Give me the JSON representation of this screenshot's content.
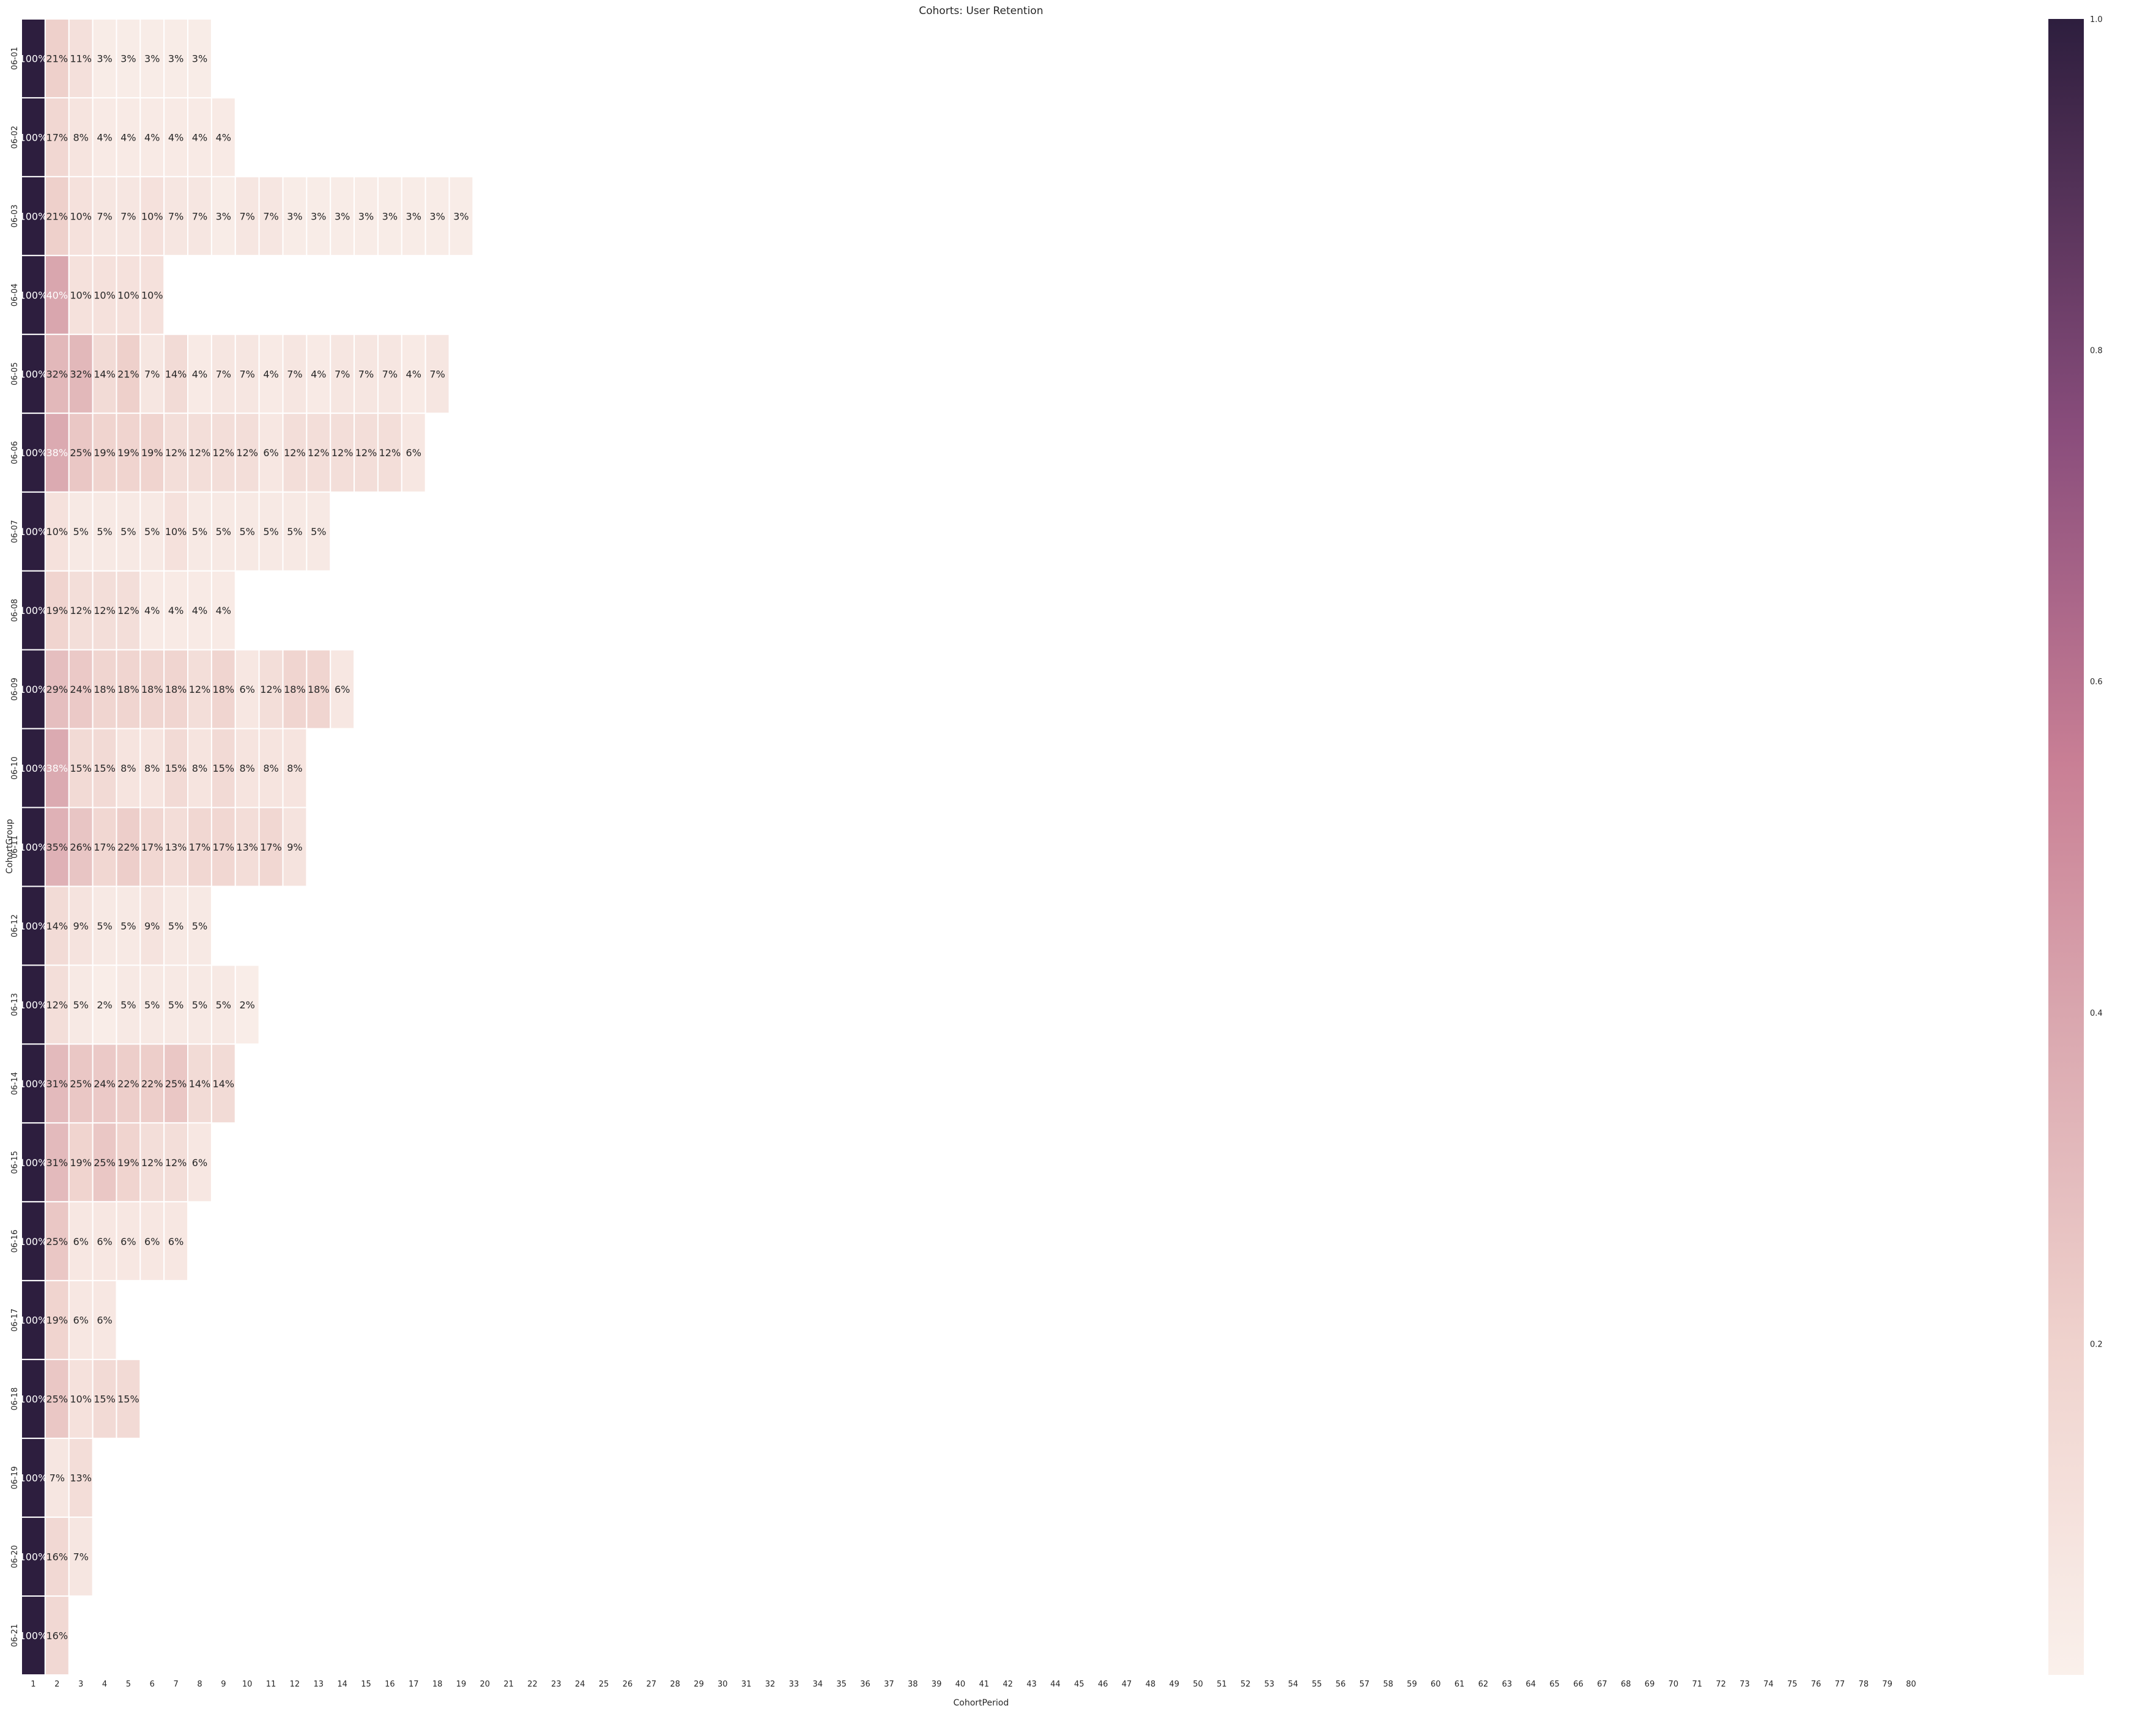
{
  "chart_data": {
    "type": "heatmap",
    "title": "Cohorts: User Retention",
    "xlabel": "CohortPeriod",
    "ylabel": "CohortGroup",
    "x_categories": [
      "1",
      "2",
      "3",
      "4",
      "5",
      "6",
      "7",
      "8",
      "9",
      "10",
      "11",
      "12",
      "13",
      "14",
      "15",
      "16",
      "17",
      "18",
      "19",
      "20",
      "21",
      "22",
      "23",
      "24",
      "25",
      "26",
      "27",
      "28",
      "29",
      "30",
      "31",
      "32",
      "33",
      "34",
      "35",
      "36",
      "37",
      "38",
      "39",
      "40",
      "41",
      "42",
      "43",
      "44",
      "45",
      "46",
      "47",
      "48",
      "49",
      "50",
      "51",
      "52",
      "53",
      "54",
      "55",
      "56",
      "57",
      "58",
      "59",
      "60",
      "61",
      "62",
      "63",
      "64",
      "65",
      "66",
      "67",
      "68",
      "69",
      "70",
      "71",
      "72",
      "73",
      "74",
      "75",
      "76",
      "77",
      "78",
      "79",
      "80"
    ],
    "y_categories": [
      "06-01",
      "06-02",
      "06-03",
      "06-04",
      "06-05",
      "06-06",
      "06-07",
      "06-08",
      "06-09",
      "06-10",
      "06-11",
      "06-12",
      "06-13",
      "06-14",
      "06-15",
      "06-16",
      "06-17",
      "06-18",
      "06-19",
      "06-20",
      "06-21"
    ],
    "values": [
      [
        1.0,
        0.21,
        0.11,
        0.03,
        0.03,
        0.03,
        0.03,
        0.03
      ],
      [
        1.0,
        0.17,
        0.08,
        0.04,
        0.04,
        0.04,
        0.04,
        0.04,
        0.04
      ],
      [
        1.0,
        0.21,
        0.1,
        0.07,
        0.07,
        0.1,
        0.07,
        0.07,
        0.03,
        0.07,
        0.07,
        0.03,
        0.03,
        0.03,
        0.03,
        0.03,
        0.03,
        0.03,
        0.03
      ],
      [
        1.0,
        0.4,
        0.1,
        0.1,
        0.1,
        0.1
      ],
      [
        1.0,
        0.32,
        0.32,
        0.14,
        0.21,
        0.07,
        0.14,
        0.04,
        0.07,
        0.07,
        0.04,
        0.07,
        0.04,
        0.07,
        0.07,
        0.07,
        0.04,
        0.07
      ],
      [
        1.0,
        0.38,
        0.25,
        0.19,
        0.19,
        0.19,
        0.12,
        0.12,
        0.12,
        0.12,
        0.06,
        0.12,
        0.12,
        0.12,
        0.12,
        0.12,
        0.06
      ],
      [
        1.0,
        0.1,
        0.05,
        0.05,
        0.05,
        0.05,
        0.1,
        0.05,
        0.05,
        0.05,
        0.05,
        0.05,
        0.05
      ],
      [
        1.0,
        0.19,
        0.12,
        0.12,
        0.12,
        0.04,
        0.04,
        0.04,
        0.04
      ],
      [
        1.0,
        0.29,
        0.24,
        0.18,
        0.18,
        0.18,
        0.18,
        0.12,
        0.18,
        0.06,
        0.12,
        0.18,
        0.18,
        0.06
      ],
      [
        1.0,
        0.38,
        0.15,
        0.15,
        0.08,
        0.08,
        0.15,
        0.08,
        0.15,
        0.08,
        0.08,
        0.08
      ],
      [
        1.0,
        0.35,
        0.26,
        0.17,
        0.22,
        0.17,
        0.13,
        0.17,
        0.17,
        0.13,
        0.17,
        0.09
      ],
      [
        1.0,
        0.14,
        0.09,
        0.05,
        0.05,
        0.09,
        0.05,
        0.05
      ],
      [
        1.0,
        0.12,
        0.05,
        0.02,
        0.05,
        0.05,
        0.05,
        0.05,
        0.05,
        0.02
      ],
      [
        1.0,
        0.31,
        0.25,
        0.24,
        0.22,
        0.22,
        0.25,
        0.14,
        0.14
      ],
      [
        1.0,
        0.31,
        0.19,
        0.25,
        0.19,
        0.12,
        0.12,
        0.06
      ],
      [
        1.0,
        0.25,
        0.06,
        0.06,
        0.06,
        0.06,
        0.06
      ],
      [
        1.0,
        0.19,
        0.06,
        0.06
      ],
      [
        1.0,
        0.25,
        0.1,
        0.15,
        0.15
      ],
      [
        1.0,
        0.07,
        0.13
      ],
      [
        1.0,
        0.16,
        0.07
      ],
      [
        1.0,
        0.16
      ]
    ],
    "value_format": "percent",
    "colorbar": {
      "min": 0,
      "max": 1,
      "ticks": [
        "0.2",
        "0.4",
        "0.6",
        "0.8",
        "1.0"
      ],
      "tick_values": [
        0.2,
        0.4,
        0.6,
        0.8,
        1.0
      ]
    },
    "colors": {
      "low": "#faf0eb",
      "mid": "#c97f95",
      "high": "#2d1e3e"
    },
    "grid": false
  }
}
